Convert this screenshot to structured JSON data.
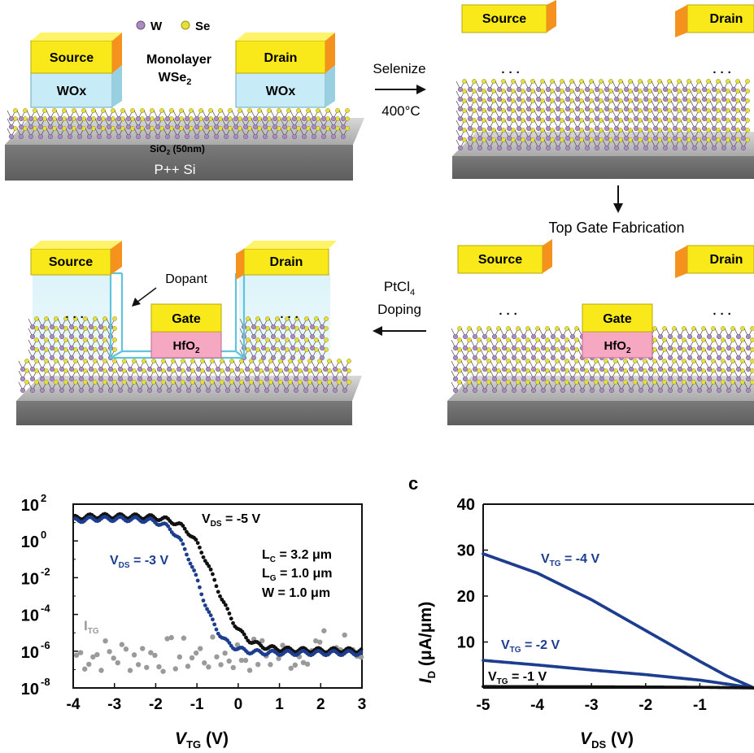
{
  "legend": {
    "w": "W",
    "se": "Se"
  },
  "panel1": {
    "source": "Source",
    "drain": "Drain",
    "wox": "WOx",
    "mono_line1": "Monolayer",
    "mono_line2": "WSe",
    "mono_sub": "2",
    "sio2": "SiO",
    "sio2_sub": "2",
    "sio2_rest": " (50nm)",
    "si": "P++ Si"
  },
  "step1": {
    "line1": "Selenize",
    "line2": "400°C"
  },
  "panel2": {
    "source": "Source",
    "drain": "Drain",
    "dots": "· · ·"
  },
  "step2": {
    "label": "Top Gate Fabrication"
  },
  "panel3": {
    "source": "Source",
    "drain": "Drain",
    "gate": "Gate",
    "hfo2": "HfO",
    "hfo2_sub": "2",
    "dots": "· · ·"
  },
  "step3": {
    "line1": "PtCl",
    "line1_sub": "4",
    "line2": "Doping"
  },
  "panel4": {
    "source": "Source",
    "drain": "Drain",
    "gate": "Gate",
    "hfo2": "HfO",
    "hfo2_sub": "2",
    "dopant": "Dopant",
    "dots": "· · ·"
  },
  "colors": {
    "source_top": "#f9e81a",
    "electrode_orange": "#f5921e",
    "wox_blue": "#c8ecf7",
    "gate_yellow": "#f9e81a",
    "hfo2_pink": "#f6a7c2",
    "substrate": "#8d8d8d",
    "w_atom": "#a98dbd",
    "se_atom": "#e8e03a",
    "navy": "#1d3d8f",
    "gray_dot": "#9a9a9a"
  },
  "chart_b": {
    "chart_data": {
      "type": "scatter",
      "xlabel": "V",
      "xlabel_sub": "TG",
      "xlabel_unit": " (V)",
      "xticks": [
        "-4",
        "-3",
        "-2",
        "-1",
        "0",
        "1",
        "2",
        "3"
      ],
      "xlim": [
        -4,
        3
      ],
      "yscale": "log",
      "ylim_exp": [
        -8,
        2
      ],
      "ytick_base": "10",
      "yticks_exp": [
        "2",
        "0",
        "-2",
        "-4",
        "-6",
        "-8"
      ],
      "annotations": {
        "vds5": "V",
        "vds5_sub": "DS",
        "vds5_val": " = -5 V",
        "vds3": "V",
        "vds3_sub": "DS",
        "vds3_val": " = -3 V",
        "lc": "L",
        "lc_sub": "C",
        "lc_val": " = 3.2 μm",
        "lg": "L",
        "lg_sub": "G",
        "lg_val": " = 1.0 μm",
        "w": "W = 1.0 μm",
        "itg": "I",
        "itg_sub": "TG"
      },
      "series": [
        {
          "name": "VDS = -5 V",
          "color": "#111111",
          "v_half": -0.55,
          "on_exp": 1.35,
          "off_exp": -5.95,
          "kt": 0.33
        },
        {
          "name": "VDS = -3 V",
          "color": "#1d3d8f",
          "v_half": -0.95,
          "on_exp": 1.2,
          "off_exp": -6.1,
          "kt": 0.28
        },
        {
          "name": "ITG",
          "color": "#9a9a9a"
        }
      ]
    }
  },
  "chart_c": {
    "panel_letter": "c",
    "chart_data": {
      "type": "line",
      "xlabel": "V",
      "xlabel_sub": "DS",
      "xlabel_unit": " (V)",
      "ylabel": "I",
      "ylabel_sub": "D",
      "ylabel_unit": " (μA/μm)",
      "xticks": [
        "-5",
        "-4",
        "-3",
        "-2",
        "-1"
      ],
      "yticks": [
        "40",
        "30",
        "20",
        "10"
      ],
      "xlim": [
        -5,
        0
      ],
      "ylim": [
        0,
        40
      ],
      "annotations": {
        "v4": "V",
        "v4_sub": "TG",
        "v4_val": " = -4 V",
        "v2": "V",
        "v2_sub": "TG",
        "v2_val": " = -2 V",
        "v1": "V",
        "v1_sub": "TG",
        "v1_val": " = -1 V"
      },
      "series": [
        {
          "name": "VTG = -4 V",
          "color": "#1d3d8f",
          "values": [
            [
              -5,
              29.2
            ],
            [
              -4,
              25.0
            ],
            [
              -3,
              19.2
            ],
            [
              -2,
              12.5
            ],
            [
              -1,
              5.8
            ],
            [
              -0.5,
              2.6
            ],
            [
              0,
              0
            ]
          ]
        },
        {
          "name": "VTG = -2 V",
          "color": "#1d3d8f",
          "values": [
            [
              -5,
              6.0
            ],
            [
              -4,
              5.0
            ],
            [
              -3,
              3.9
            ],
            [
              -2,
              2.9
            ],
            [
              -1,
              1.7
            ],
            [
              0,
              0
            ]
          ]
        },
        {
          "name": "VTG = -1 V",
          "color": "#111111",
          "values": [
            [
              -5,
              0.3
            ],
            [
              -3,
              0.25
            ],
            [
              -1,
              0.15
            ],
            [
              0,
              0
            ]
          ]
        }
      ]
    }
  }
}
